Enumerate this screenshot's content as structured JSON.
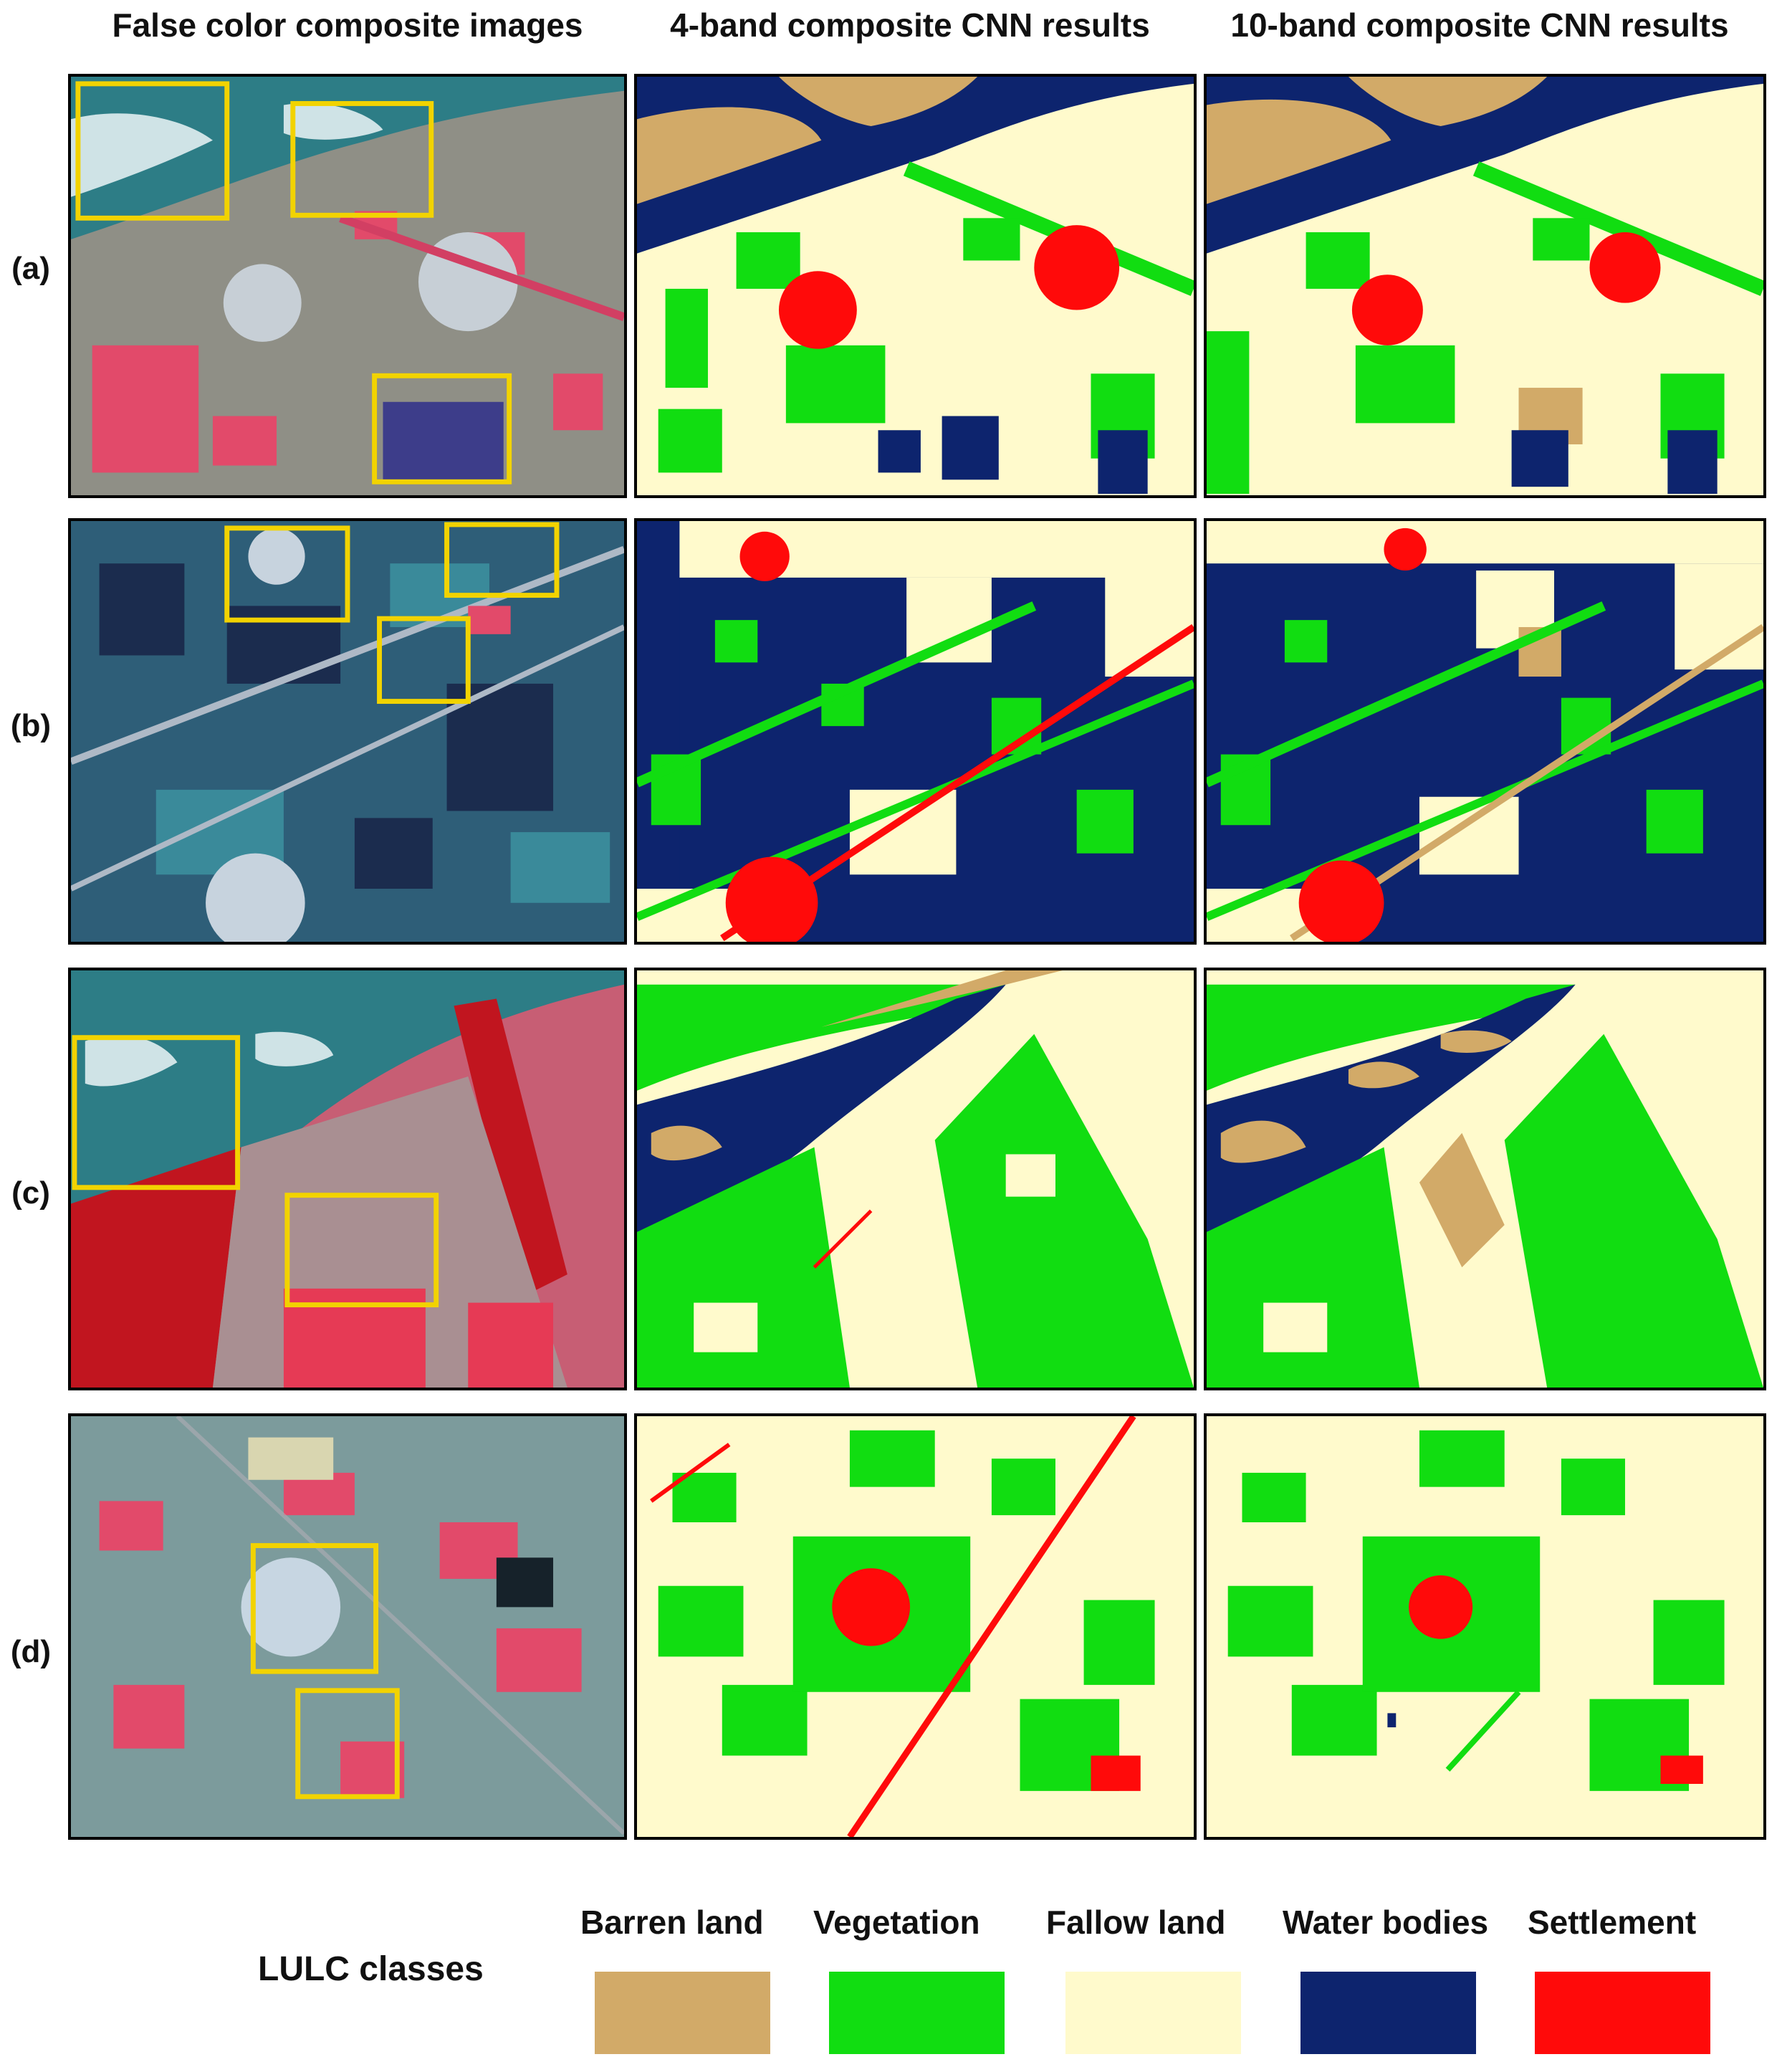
{
  "columns": [
    {
      "label": "False color composite images"
    },
    {
      "label": "4-band composite CNN results"
    },
    {
      "label": "10-band composite CNN results"
    }
  ],
  "rows": [
    {
      "label": "(a)"
    },
    {
      "label": "(b)"
    },
    {
      "label": "(c)"
    },
    {
      "label": "(d)"
    }
  ],
  "legend": {
    "title": "LULC classes",
    "classes": [
      {
        "name": "Barren land",
        "color": "#d2aa68"
      },
      {
        "name": "Vegetation",
        "color": "#11dd11"
      },
      {
        "name": "Fallow land",
        "color": "#fffacc"
      },
      {
        "name": "Water bodies",
        "color": "#0d246e"
      },
      {
        "name": "Settlement",
        "color": "#ff0a0a"
      }
    ]
  },
  "colors": {
    "highlight_box": "#f2d300",
    "fcc_soil": "#8f8f86",
    "fcc_crop": "#e24a6a",
    "fcc_water": "#2d7d86"
  }
}
